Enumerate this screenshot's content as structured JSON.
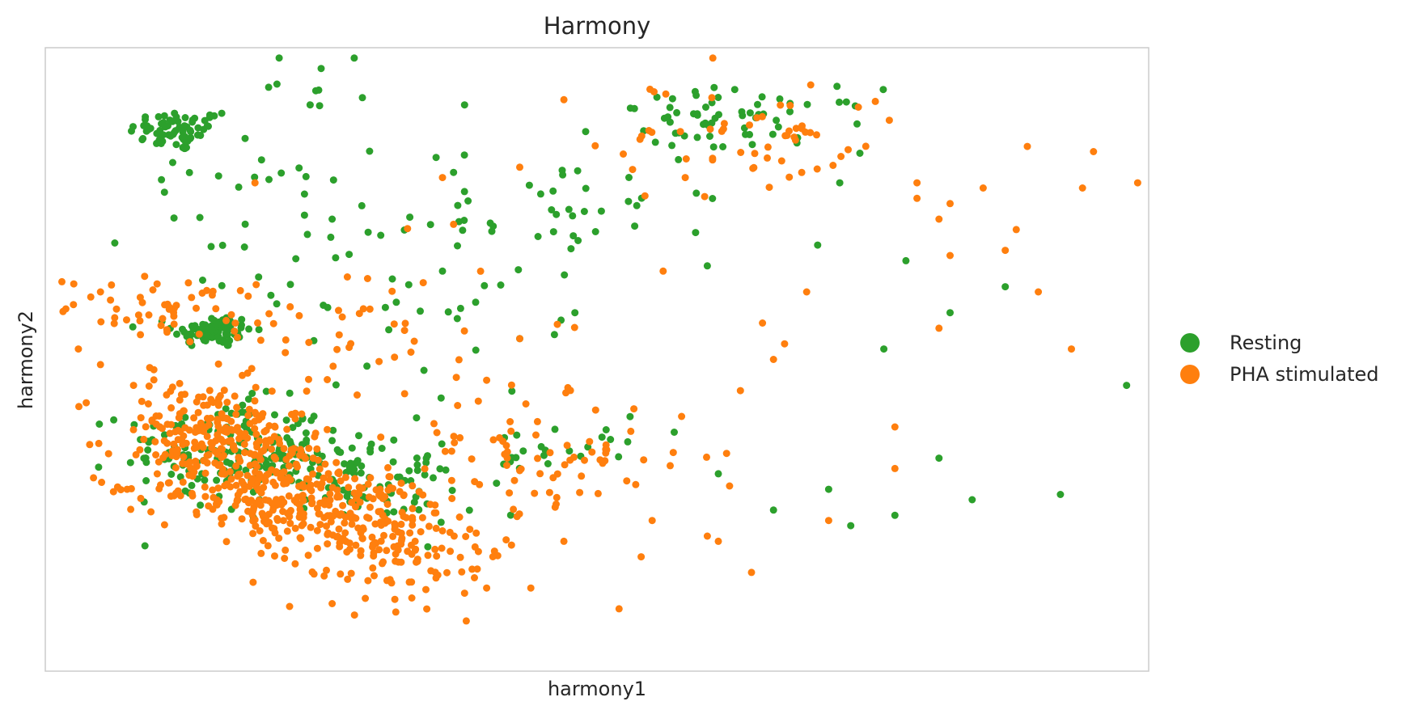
{
  "chart_data": {
    "type": "scatter",
    "title": "Harmony",
    "xlabel": "harmony1",
    "ylabel": "harmony2",
    "xlim": [
      0,
      100
    ],
    "ylim": [
      -60,
      60
    ],
    "grid": false,
    "ticks_shown": false,
    "legend_position": "right",
    "series": [
      {
        "name": "Resting",
        "color": "#2ca02c",
        "clusters": [
          {
            "x": 12,
            "y": 44,
            "sx": 2.2,
            "sy": 2.0,
            "n": 70
          },
          {
            "x": 15.2,
            "y": 5.5,
            "sx": 1.8,
            "sy": 1.6,
            "n": 80
          },
          {
            "x": 16,
            "y": -17,
            "sx": 4.5,
            "sy": 4.5,
            "n": 110
          },
          {
            "x": 23,
            "y": -20,
            "sx": 5.5,
            "sy": 4.5,
            "n": 110
          },
          {
            "x": 31,
            "y": -26,
            "sx": 4,
            "sy": 3.5,
            "n": 40
          },
          {
            "x": 45,
            "y": -18,
            "sx": 5,
            "sy": 2.5,
            "n": 25
          },
          {
            "x": 63,
            "y": 46,
            "sx": 6,
            "sy": 3,
            "n": 65
          },
          {
            "x": 47,
            "y": 30,
            "sx": 7,
            "sy": 5,
            "n": 30
          },
          {
            "x": 33,
            "y": 15,
            "sx": 7,
            "sy": 12,
            "n": 45
          },
          {
            "x": 20,
            "y": 34,
            "sx": 6,
            "sy": 12,
            "n": 35
          }
        ],
        "points": [
          [
            98,
            -5
          ],
          [
            84,
            -27
          ],
          [
            92,
            -26
          ],
          [
            77,
            -30
          ],
          [
            71,
            -25
          ],
          [
            81,
            -19
          ],
          [
            87,
            14
          ],
          [
            82,
            9
          ],
          [
            78,
            19
          ],
          [
            76,
            2
          ],
          [
            57,
            -14
          ],
          [
            53,
            -11
          ],
          [
            61,
            -22
          ],
          [
            66,
            -29
          ],
          [
            73,
            -32
          ],
          [
            70,
            22
          ],
          [
            72,
            34
          ],
          [
            59,
            32
          ],
          [
            26,
            27
          ],
          [
            37,
            36
          ],
          [
            38,
            49
          ],
          [
            24,
            49
          ],
          [
            21,
            53
          ],
          [
            28,
            58
          ],
          [
            25,
            56
          ],
          [
            36,
            17
          ],
          [
            39,
            11
          ],
          [
            43,
            4
          ],
          [
            48,
            9
          ],
          [
            60,
            18
          ]
        ]
      },
      {
        "name": "PHA stimulated",
        "color": "#ff7f0e",
        "clusters": [
          {
            "x": 12,
            "y": 10,
            "sx": 5,
            "sy": 3,
            "n": 55
          },
          {
            "x": 14.5,
            "y": -14,
            "sx": 4.5,
            "sy": 5,
            "n": 190
          },
          {
            "x": 20,
            "y": -24,
            "sx": 5,
            "sy": 5,
            "n": 240
          },
          {
            "x": 28,
            "y": -31,
            "sx": 4.5,
            "sy": 5,
            "n": 170
          },
          {
            "x": 35,
            "y": -37,
            "sx": 4,
            "sy": 5,
            "n": 70
          },
          {
            "x": 46,
            "y": -18,
            "sx": 7,
            "sy": 5,
            "n": 70
          },
          {
            "x": 64,
            "y": 42,
            "sx": 7,
            "sy": 6,
            "n": 55
          },
          {
            "x": 28,
            "y": 4,
            "sx": 8,
            "sy": 8,
            "n": 45
          }
        ],
        "points": [
          [
            60.5,
            58
          ],
          [
            47,
            50
          ],
          [
            54.8,
            52
          ],
          [
            43,
            37
          ],
          [
            58,
            35
          ],
          [
            56,
            17
          ],
          [
            66,
            0
          ],
          [
            63,
            -6
          ],
          [
            82,
            30
          ],
          [
            79,
            31
          ],
          [
            88,
            25
          ],
          [
            81,
            27
          ],
          [
            79,
            34
          ],
          [
            82,
            20
          ],
          [
            81,
            6
          ],
          [
            77,
            -13
          ],
          [
            77,
            -21
          ],
          [
            71,
            -31
          ],
          [
            64,
            -41
          ],
          [
            52,
            -48
          ],
          [
            44,
            -44
          ],
          [
            54,
            -38
          ],
          [
            47,
            -35
          ],
          [
            61,
            -35
          ],
          [
            43,
            4
          ],
          [
            40,
            -4
          ],
          [
            37,
            26
          ],
          [
            36,
            35
          ],
          [
            19,
            34
          ],
          [
            5,
            13
          ],
          [
            9,
            16
          ],
          [
            3,
            2
          ],
          [
            5,
            -1
          ],
          [
            8,
            -5
          ],
          [
            32,
            -39
          ],
          [
            40,
            -44
          ],
          [
            29,
            -46
          ],
          [
            26,
            -47
          ],
          [
            36,
            -33
          ],
          [
            38,
            -45
          ],
          [
            60,
            -34
          ],
          [
            55,
            -31
          ],
          [
            67,
            3
          ],
          [
            65,
            7
          ],
          [
            69,
            13
          ],
          [
            89,
            41
          ],
          [
            99,
            34
          ],
          [
            100,
            27
          ],
          [
            95,
            40
          ],
          [
            94,
            33
          ],
          [
            85,
            33
          ],
          [
            87,
            21
          ],
          [
            90,
            13
          ],
          [
            93,
            2
          ]
        ]
      }
    ]
  }
}
